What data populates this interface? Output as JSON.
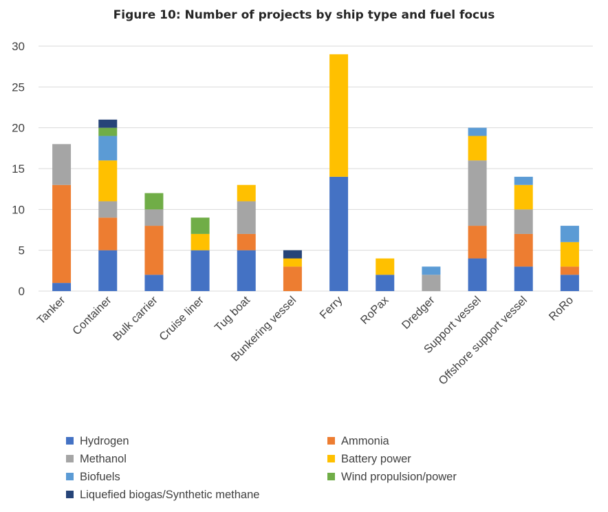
{
  "chart_data": {
    "type": "bar",
    "stacked": true,
    "title": "Figure 10: Number of projects by ship type and fuel focus",
    "xlabel": "",
    "ylabel": "",
    "ylim": [
      0,
      30
    ],
    "yticks": [
      0,
      5,
      10,
      15,
      20,
      25,
      30
    ],
    "grid": true,
    "legend_position": "bottom",
    "categories": [
      "Tanker",
      "Container",
      "Bulk carrier",
      "Cruise liner",
      "Tug boat",
      "Bunkering vessel",
      "Ferry",
      "RoPax",
      "Dredger",
      "Support vessel",
      "Offshore support vessel",
      "RoRo"
    ],
    "series": [
      {
        "name": "Hydrogen",
        "color": "#4472c4",
        "values": [
          1,
          5,
          2,
          5,
          5,
          0,
          14,
          2,
          0,
          4,
          3,
          2
        ]
      },
      {
        "name": "Ammonia",
        "color": "#ed7d31",
        "values": [
          12,
          4,
          6,
          0,
          2,
          3,
          0,
          0,
          0,
          4,
          4,
          1
        ]
      },
      {
        "name": "Methanol",
        "color": "#a5a5a5",
        "values": [
          5,
          2,
          2,
          0,
          4,
          0,
          0,
          0,
          2,
          8,
          3,
          0
        ]
      },
      {
        "name": "Battery power",
        "color": "#ffc000",
        "values": [
          0,
          5,
          0,
          2,
          2,
          1,
          15,
          2,
          0,
          3,
          3,
          3
        ]
      },
      {
        "name": "Biofuels",
        "color": "#5b9bd5",
        "values": [
          0,
          3,
          0,
          0,
          0,
          0,
          0,
          0,
          1,
          1,
          1,
          2
        ]
      },
      {
        "name": "Wind propulsion/power",
        "color": "#70ad47",
        "values": [
          0,
          1,
          2,
          2,
          0,
          0,
          0,
          0,
          0,
          0,
          0,
          0
        ]
      },
      {
        "name": "Liquefied biogas/Synthetic methane",
        "color": "#264478",
        "values": [
          0,
          1,
          0,
          0,
          0,
          1,
          0,
          0,
          0,
          0,
          0,
          0
        ]
      }
    ]
  }
}
